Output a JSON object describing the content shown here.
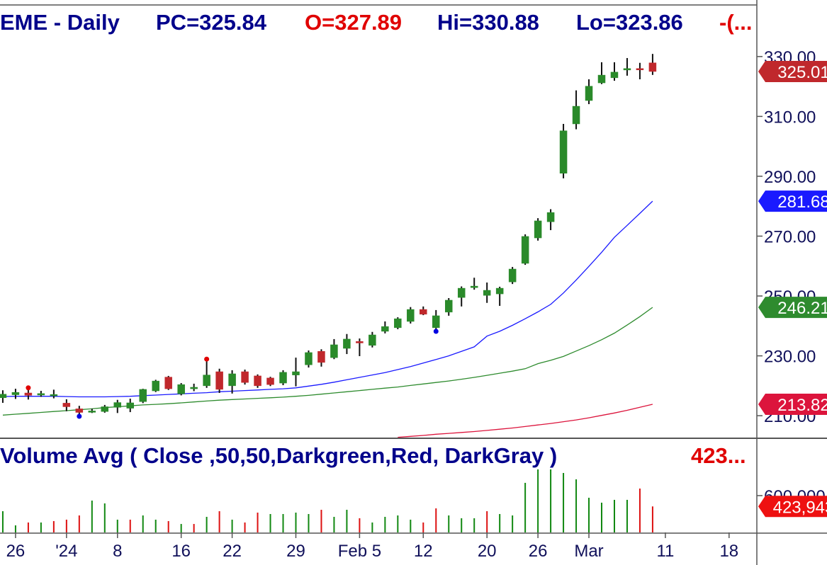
{
  "chart_data": {
    "type": "candlestick",
    "header": [
      {
        "text": "EME - Daily",
        "color": "#00008b"
      },
      {
        "text": "PC=325.84",
        "color": "#00008b"
      },
      {
        "text": "O=327.89",
        "color": "#e00000"
      },
      {
        "text": "Hi=330.88",
        "color": "#00008b"
      },
      {
        "text": "Lo=323.86",
        "color": "#00008b"
      },
      {
        "text": "-(...",
        "color": "#e00000"
      }
    ],
    "up_color": "#2a8a2a",
    "down_color": "#c0282c",
    "xlim": [
      -0.22,
      59.18
    ],
    "xticks": [
      {
        "value": 1,
        "label": "26"
      },
      {
        "value": 5,
        "label": "'24"
      },
      {
        "value": 9,
        "label": "8"
      },
      {
        "value": 14,
        "label": "16"
      },
      {
        "value": 18,
        "label": "22"
      },
      {
        "value": 23,
        "label": "29"
      },
      {
        "value": 28,
        "label": "Feb 5"
      },
      {
        "value": 33,
        "label": "12"
      },
      {
        "value": 38,
        "label": "20"
      },
      {
        "value": 42,
        "label": "26"
      },
      {
        "value": 46,
        "label": "Mar"
      },
      {
        "value": 52,
        "label": "11"
      },
      {
        "value": 57,
        "label": "18"
      }
    ],
    "ylim": [
      202.7,
      347
    ],
    "yticks": [
      {
        "value": 210,
        "label": "210.00"
      },
      {
        "value": 230,
        "label": "230.00"
      },
      {
        "value": 250,
        "label": "250.00"
      },
      {
        "value": 270,
        "label": "270.00"
      },
      {
        "value": 290,
        "label": "290.00"
      },
      {
        "value": 310,
        "label": "310.00"
      },
      {
        "value": 330,
        "label": "330.00"
      }
    ],
    "open": [
      216,
      217,
      217.6,
      216.9,
      217,
      214.2,
      212.3,
      211.3,
      211.4,
      212.8,
      212.5,
      214.7,
      218.3,
      222.9,
      217.3,
      219,
      220,
      224.7,
      220,
      224.7,
      223.3,
      222.6,
      220.9,
      223.6,
      227,
      231.5,
      229.4,
      232.5,
      234.8,
      233.5,
      238.2,
      239.4,
      241.5,
      245.5,
      239.4,
      244.6,
      249.5,
      252.8,
      250.2,
      250.7,
      254.7,
      260.9,
      269.4,
      274.8,
      291,
      307.5,
      315.3,
      321.2,
      322.9,
      325.5,
      326,
      327.89
    ],
    "high": [
      218.5,
      219,
      218.6,
      218.3,
      218.7,
      215.5,
      213.3,
      212.3,
      213.6,
      215.3,
      215.7,
      219,
      222,
      223.3,
      220.9,
      220.7,
      228.2,
      225.7,
      225.2,
      225.4,
      223.8,
      223,
      225.2,
      229.4,
      231.8,
      232.2,
      235.6,
      237.3,
      235.8,
      238,
      241.5,
      242.9,
      246.3,
      246.5,
      245.3,
      249.3,
      253.2,
      256.1,
      254.5,
      253.1,
      259.7,
      270.6,
      276,
      279,
      307.5,
      318.7,
      322.4,
      328.1,
      328.1,
      329.5,
      327.9,
      330.88
    ],
    "low": [
      214.3,
      215.6,
      215.4,
      216.3,
      215.8,
      211.5,
      210.5,
      210.9,
      211,
      210.9,
      211.2,
      214.2,
      217.9,
      218.6,
      216.8,
      218.2,
      219.3,
      217.6,
      217.4,
      220.4,
      219.3,
      219.9,
      220.2,
      219.8,
      226.1,
      226.4,
      228.9,
      230.6,
      229.9,
      232.8,
      237.5,
      238.9,
      240.8,
      243.6,
      238.9,
      243.4,
      246.5,
      252.1,
      247.7,
      246.7,
      254,
      260.4,
      268.5,
      272,
      289.3,
      305.7,
      314.1,
      320.8,
      321.9,
      323.6,
      322.4,
      323.86
    ],
    "close": [
      217.2,
      217.8,
      216.8,
      217.4,
      217.1,
      213,
      211.1,
      211.6,
      213,
      214.4,
      214.3,
      218.8,
      221.6,
      219,
      220.4,
      219.5,
      223.6,
      218.8,
      224,
      221.1,
      220,
      220.4,
      224.5,
      224.7,
      231.1,
      227.8,
      233.7,
      235.6,
      234.3,
      237,
      239.8,
      242.4,
      245.5,
      243.9,
      243.4,
      248.6,
      252.6,
      253.3,
      251.9,
      252.6,
      259,
      269.9,
      275.1,
      277.9,
      305.2,
      313.4,
      320.1,
      323.8,
      324.8,
      326,
      325.84,
      325.01
    ],
    "overlays": [
      {
        "color": "#1a1aff",
        "values": [
          216.4,
          216.5,
          216.5,
          216.5,
          216.5,
          216.4,
          216.3,
          216.3,
          216.3,
          216.4,
          216.5,
          216.7,
          216.9,
          217.1,
          217.3,
          217.5,
          217.7,
          218,
          218.2,
          218.4,
          218.6,
          218.8,
          219,
          219.3,
          219.9,
          220.5,
          221.2,
          222,
          222.8,
          223.6,
          224.4,
          225.4,
          226.4,
          227.6,
          228.8,
          230,
          231.5,
          233,
          236.6,
          238.2,
          240.2,
          242.4,
          244.7,
          247.2,
          251,
          255.3,
          259.9,
          264.6,
          269.6,
          273.6,
          277.6,
          281.68
        ]
      },
      {
        "color": "#2e8b2e",
        "values": [
          210.2,
          210.5,
          210.8,
          211.1,
          211.4,
          211.7,
          212,
          212.3,
          212.7,
          213,
          213.3,
          213.6,
          213.8,
          214,
          214.3,
          214.6,
          214.9,
          215.2,
          215.4,
          215.6,
          215.8,
          216,
          216.2,
          216.5,
          216.8,
          217.2,
          217.6,
          218,
          218.4,
          218.8,
          219.2,
          219.6,
          220.1,
          220.6,
          221.1,
          221.6,
          222.2,
          222.8,
          223.5,
          224.2,
          224.9,
          225.7,
          227.4,
          228.5,
          229.8,
          231.6,
          233.4,
          235.4,
          237.6,
          240.3,
          243.1,
          246.21
        ]
      },
      {
        "color": "#dc143c",
        "values": [
          null,
          null,
          null,
          null,
          null,
          null,
          null,
          null,
          null,
          null,
          null,
          null,
          null,
          null,
          null,
          null,
          null,
          null,
          null,
          null,
          null,
          null,
          null,
          null,
          null,
          null,
          null,
          null,
          null,
          null,
          null,
          202.8,
          203.1,
          203.4,
          203.8,
          204.1,
          204.4,
          204.7,
          205.1,
          205.5,
          205.9,
          206.4,
          206.9,
          207.4,
          208,
          208.6,
          209.3,
          210.1,
          210.9,
          211.8,
          212.8,
          213.82
        ]
      }
    ],
    "signals": [
      {
        "index": 2,
        "side": "high",
        "color": "#e00000"
      },
      {
        "index": 16,
        "side": "high",
        "color": "#e00000"
      },
      {
        "index": 6,
        "side": "low",
        "color": "#0000e0"
      },
      {
        "index": 34,
        "side": "low",
        "color": "#0000e0"
      }
    ],
    "volume": {
      "title": "Volume Avg ( Close ,50,50,Darkgreen,Red, DarkGray )",
      "last_text": "423...",
      "ylim": [
        0,
        1500000
      ],
      "yticks": [
        {
          "value": 600000,
          "label": "600,000"
        }
      ],
      "values": [
        346000,
        115000,
        162000,
        162000,
        185000,
        208000,
        277000,
        519000,
        473000,
        208000,
        208000,
        277000,
        208000,
        185000,
        138000,
        138000,
        254000,
        346000,
        208000,
        162000,
        323000,
        300000,
        300000,
        323000,
        300000,
        369000,
        254000,
        369000,
        231000,
        162000,
        254000,
        277000,
        208000,
        162000,
        392000,
        277000,
        231000,
        231000,
        346000,
        300000,
        277000,
        808000,
        1027000,
        1027000,
        969000,
        865000,
        565000,
        485000,
        531000,
        531000,
        715000,
        423943
      ],
      "value_labels": [
        null,
        null,
        null,
        null,
        null,
        null,
        null,
        null,
        null,
        null,
        null,
        null,
        null,
        null,
        null,
        null,
        null,
        null,
        null,
        null,
        null,
        null,
        null,
        null,
        null,
        null,
        null,
        null,
        null,
        null,
        null,
        null,
        null,
        null,
        null,
        null,
        null,
        null,
        null,
        null,
        null,
        null,
        null,
        null,
        null,
        null,
        null,
        null,
        null,
        null,
        null,
        "423,943"
      ]
    }
  }
}
